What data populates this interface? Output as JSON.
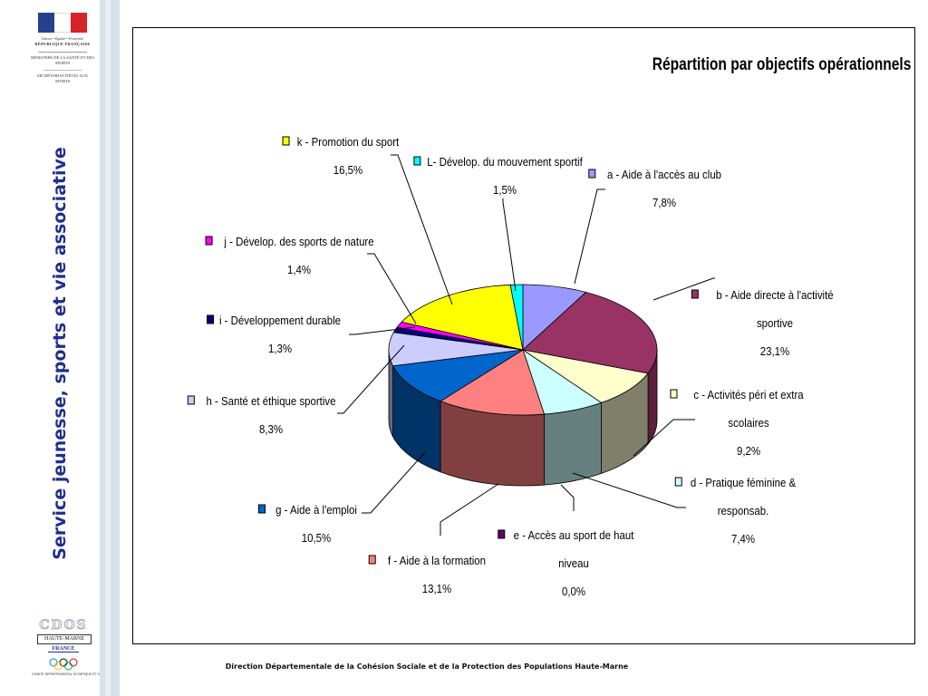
{
  "sidebar": {
    "logo": {
      "motto": "Liberté • Égalité • Fraternité",
      "republique": "RÉPUBLIQUE FRANÇAISE",
      "ministere": "MINISTÈRE DE LA SANTÉ ET DES SPORTS",
      "secretariat": "SECRÉTARIAT D'ÉTAT AUX SPORTS"
    },
    "vertical_title": "Service jeunesse, sports et vie associative",
    "cdos_logo": {
      "letters": "CDOS",
      "haute_marne": "HAUTE-MARNE",
      "france": "FRANCE",
      "caption": "COMITE DEPARTEMENTAL OLYMPIQUE ET SPORTIF"
    }
  },
  "footer": "Direction Départementale de la Cohésion Sociale et de la Protection des Populations  Haute-Marne",
  "chart_data": {
    "type": "pie",
    "title": "Répartition par objectifs opérationnels",
    "slices": [
      {
        "key": "a",
        "label_lines": [
          "a - Aide à l'accès au club"
        ],
        "value_text": "7,8%",
        "value": 7.8,
        "color": "#9999ff",
        "side": "#5b5b99"
      },
      {
        "key": "b",
        "label_lines": [
          "b - Aide directe à l'activité",
          "sportive"
        ],
        "value_text": "23,1%",
        "value": 23.1,
        "color": "#993366",
        "side": "#5c1f3d"
      },
      {
        "key": "c",
        "label_lines": [
          "c - Activités péri et extra",
          "scolaires"
        ],
        "value_text": "9,2%",
        "value": 9.2,
        "color": "#ffffcc",
        "side": "#80806a"
      },
      {
        "key": "d",
        "label_lines": [
          "d - Pratique féminine &",
          "responsab."
        ],
        "value_text": "7,4%",
        "value": 7.4,
        "color": "#ccffff",
        "side": "#668080"
      },
      {
        "key": "e",
        "label_lines": [
          "e - Accès au sport de haut",
          "niveau"
        ],
        "value_text": "0,0%",
        "value": 0.0,
        "color": "#660066",
        "side": "#330033"
      },
      {
        "key": "f",
        "label_lines": [
          "f - Aide à la formation"
        ],
        "value_text": "13,1%",
        "value": 13.1,
        "color": "#ff8080",
        "side": "#804040"
      },
      {
        "key": "g",
        "label_lines": [
          "g - Aide à l'emploi"
        ],
        "value_text": "10,5%",
        "value": 10.5,
        "color": "#0066cc",
        "side": "#003366"
      },
      {
        "key": "h",
        "label_lines": [
          "h - Santé et éthique sportive"
        ],
        "value_text": "8,3%",
        "value": 8.3,
        "color": "#ccccff",
        "side": "#666680"
      },
      {
        "key": "i",
        "label_lines": [
          "i - Développement durable"
        ],
        "value_text": "1,3%",
        "value": 1.3,
        "color": "#000080",
        "side": "#000040"
      },
      {
        "key": "j",
        "label_lines": [
          "j - Dévelop. des sports de nature"
        ],
        "value_text": "1,4%",
        "value": 1.4,
        "color": "#ff00ff",
        "side": "#800080"
      },
      {
        "key": "k",
        "label_lines": [
          "k - Promotion du sport"
        ],
        "value_text": "16,5%",
        "value": 16.5,
        "color": "#ffff00",
        "side": "#808000"
      },
      {
        "key": "L",
        "label_lines": [
          "L- Dévelop. du mouvement sportif"
        ],
        "value_text": "1,5%",
        "value": 1.5,
        "color": "#00ffff",
        "side": "#008080"
      }
    ]
  }
}
